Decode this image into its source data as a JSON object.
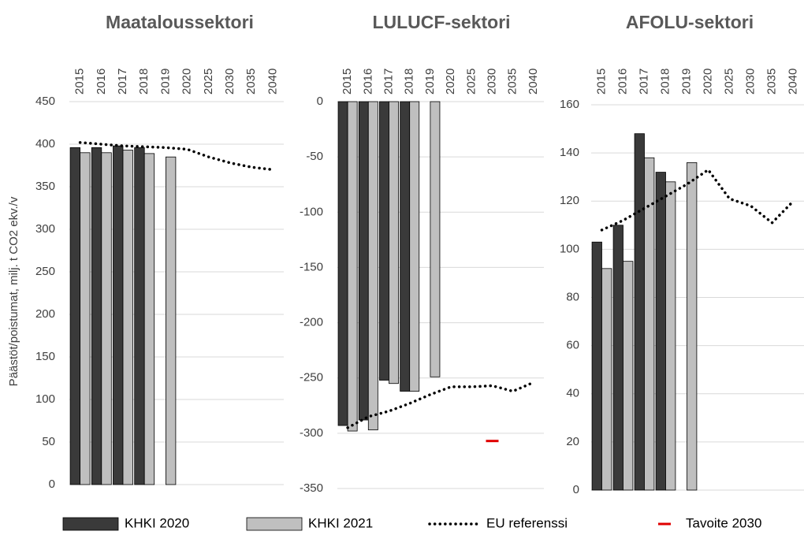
{
  "chart_data": [
    {
      "type": "bar",
      "title": "Maataloussektori",
      "ylabel": "Päästöt/poistumat, milj. t CO2 ekv./v",
      "categories": [
        "2015",
        "2016",
        "2017",
        "2018",
        "2019",
        "2020",
        "2025",
        "2030",
        "2035",
        "2040"
      ],
      "ylim": [
        0,
        450
      ],
      "yticks": [
        0,
        50,
        100,
        150,
        200,
        250,
        300,
        350,
        400,
        450
      ],
      "grid": true,
      "series": [
        {
          "name": "KHKI 2020",
          "type": "bar",
          "color": "#3a3a3a",
          "values": [
            396,
            396,
            398,
            396,
            null,
            null,
            null,
            null,
            null,
            null
          ]
        },
        {
          "name": "KHKI 2021",
          "type": "bar",
          "color": "#bfbfbf",
          "values": [
            390,
            390,
            393,
            389,
            385,
            null,
            null,
            null,
            null,
            null
          ]
        },
        {
          "name": "EU referenssi",
          "type": "line",
          "color": "#000000",
          "values": [
            402,
            400,
            398,
            397,
            396,
            394,
            385,
            378,
            373,
            370
          ]
        }
      ]
    },
    {
      "type": "bar",
      "title": "LULUCF-sektori",
      "categories": [
        "2015",
        "2016",
        "2017",
        "2018",
        "2019",
        "2020",
        "2025",
        "2030",
        "2035",
        "2040"
      ],
      "ylim": [
        -350,
        0
      ],
      "yticks": [
        -350,
        -300,
        -250,
        -200,
        -150,
        -100,
        -50,
        0
      ],
      "grid": true,
      "series": [
        {
          "name": "KHKI 2020",
          "type": "bar",
          "color": "#3a3a3a",
          "values": [
            -293,
            -288,
            -252,
            -262,
            null,
            null,
            null,
            null,
            null,
            null
          ]
        },
        {
          "name": "KHKI 2021",
          "type": "bar",
          "color": "#bfbfbf",
          "values": [
            -298,
            -297,
            -255,
            -262,
            -249,
            null,
            null,
            null,
            null,
            null
          ]
        },
        {
          "name": "EU referenssi",
          "type": "line",
          "color": "#000000",
          "values": [
            -295,
            -285,
            -280,
            -273,
            -265,
            -258,
            -258,
            -257,
            -262,
            -254
          ]
        },
        {
          "name": "Tavoite 2030",
          "type": "marker",
          "color": "#e00000",
          "values": [
            null,
            null,
            null,
            null,
            null,
            null,
            null,
            -307,
            null,
            null
          ]
        }
      ]
    },
    {
      "type": "bar",
      "title": "AFOLU-sektori",
      "categories": [
        "2015",
        "2016",
        "2017",
        "2018",
        "2019",
        "2020",
        "2025",
        "2030",
        "2035",
        "2040"
      ],
      "ylim": [
        0,
        160
      ],
      "yticks": [
        0,
        20,
        40,
        60,
        80,
        100,
        120,
        140,
        160
      ],
      "grid": true,
      "series": [
        {
          "name": "KHKI 2020",
          "type": "bar",
          "color": "#3a3a3a",
          "values": [
            103,
            110,
            148,
            132,
            null,
            null,
            null,
            null,
            null,
            null
          ]
        },
        {
          "name": "KHKI 2021",
          "type": "bar",
          "color": "#bfbfbf",
          "values": [
            92,
            95,
            138,
            128,
            136,
            null,
            null,
            null,
            null,
            null
          ]
        },
        {
          "name": "EU referenssi",
          "type": "line",
          "color": "#000000",
          "values": [
            108,
            112,
            117,
            122,
            127,
            133,
            121,
            118,
            111,
            120
          ]
        }
      ]
    }
  ]
}
